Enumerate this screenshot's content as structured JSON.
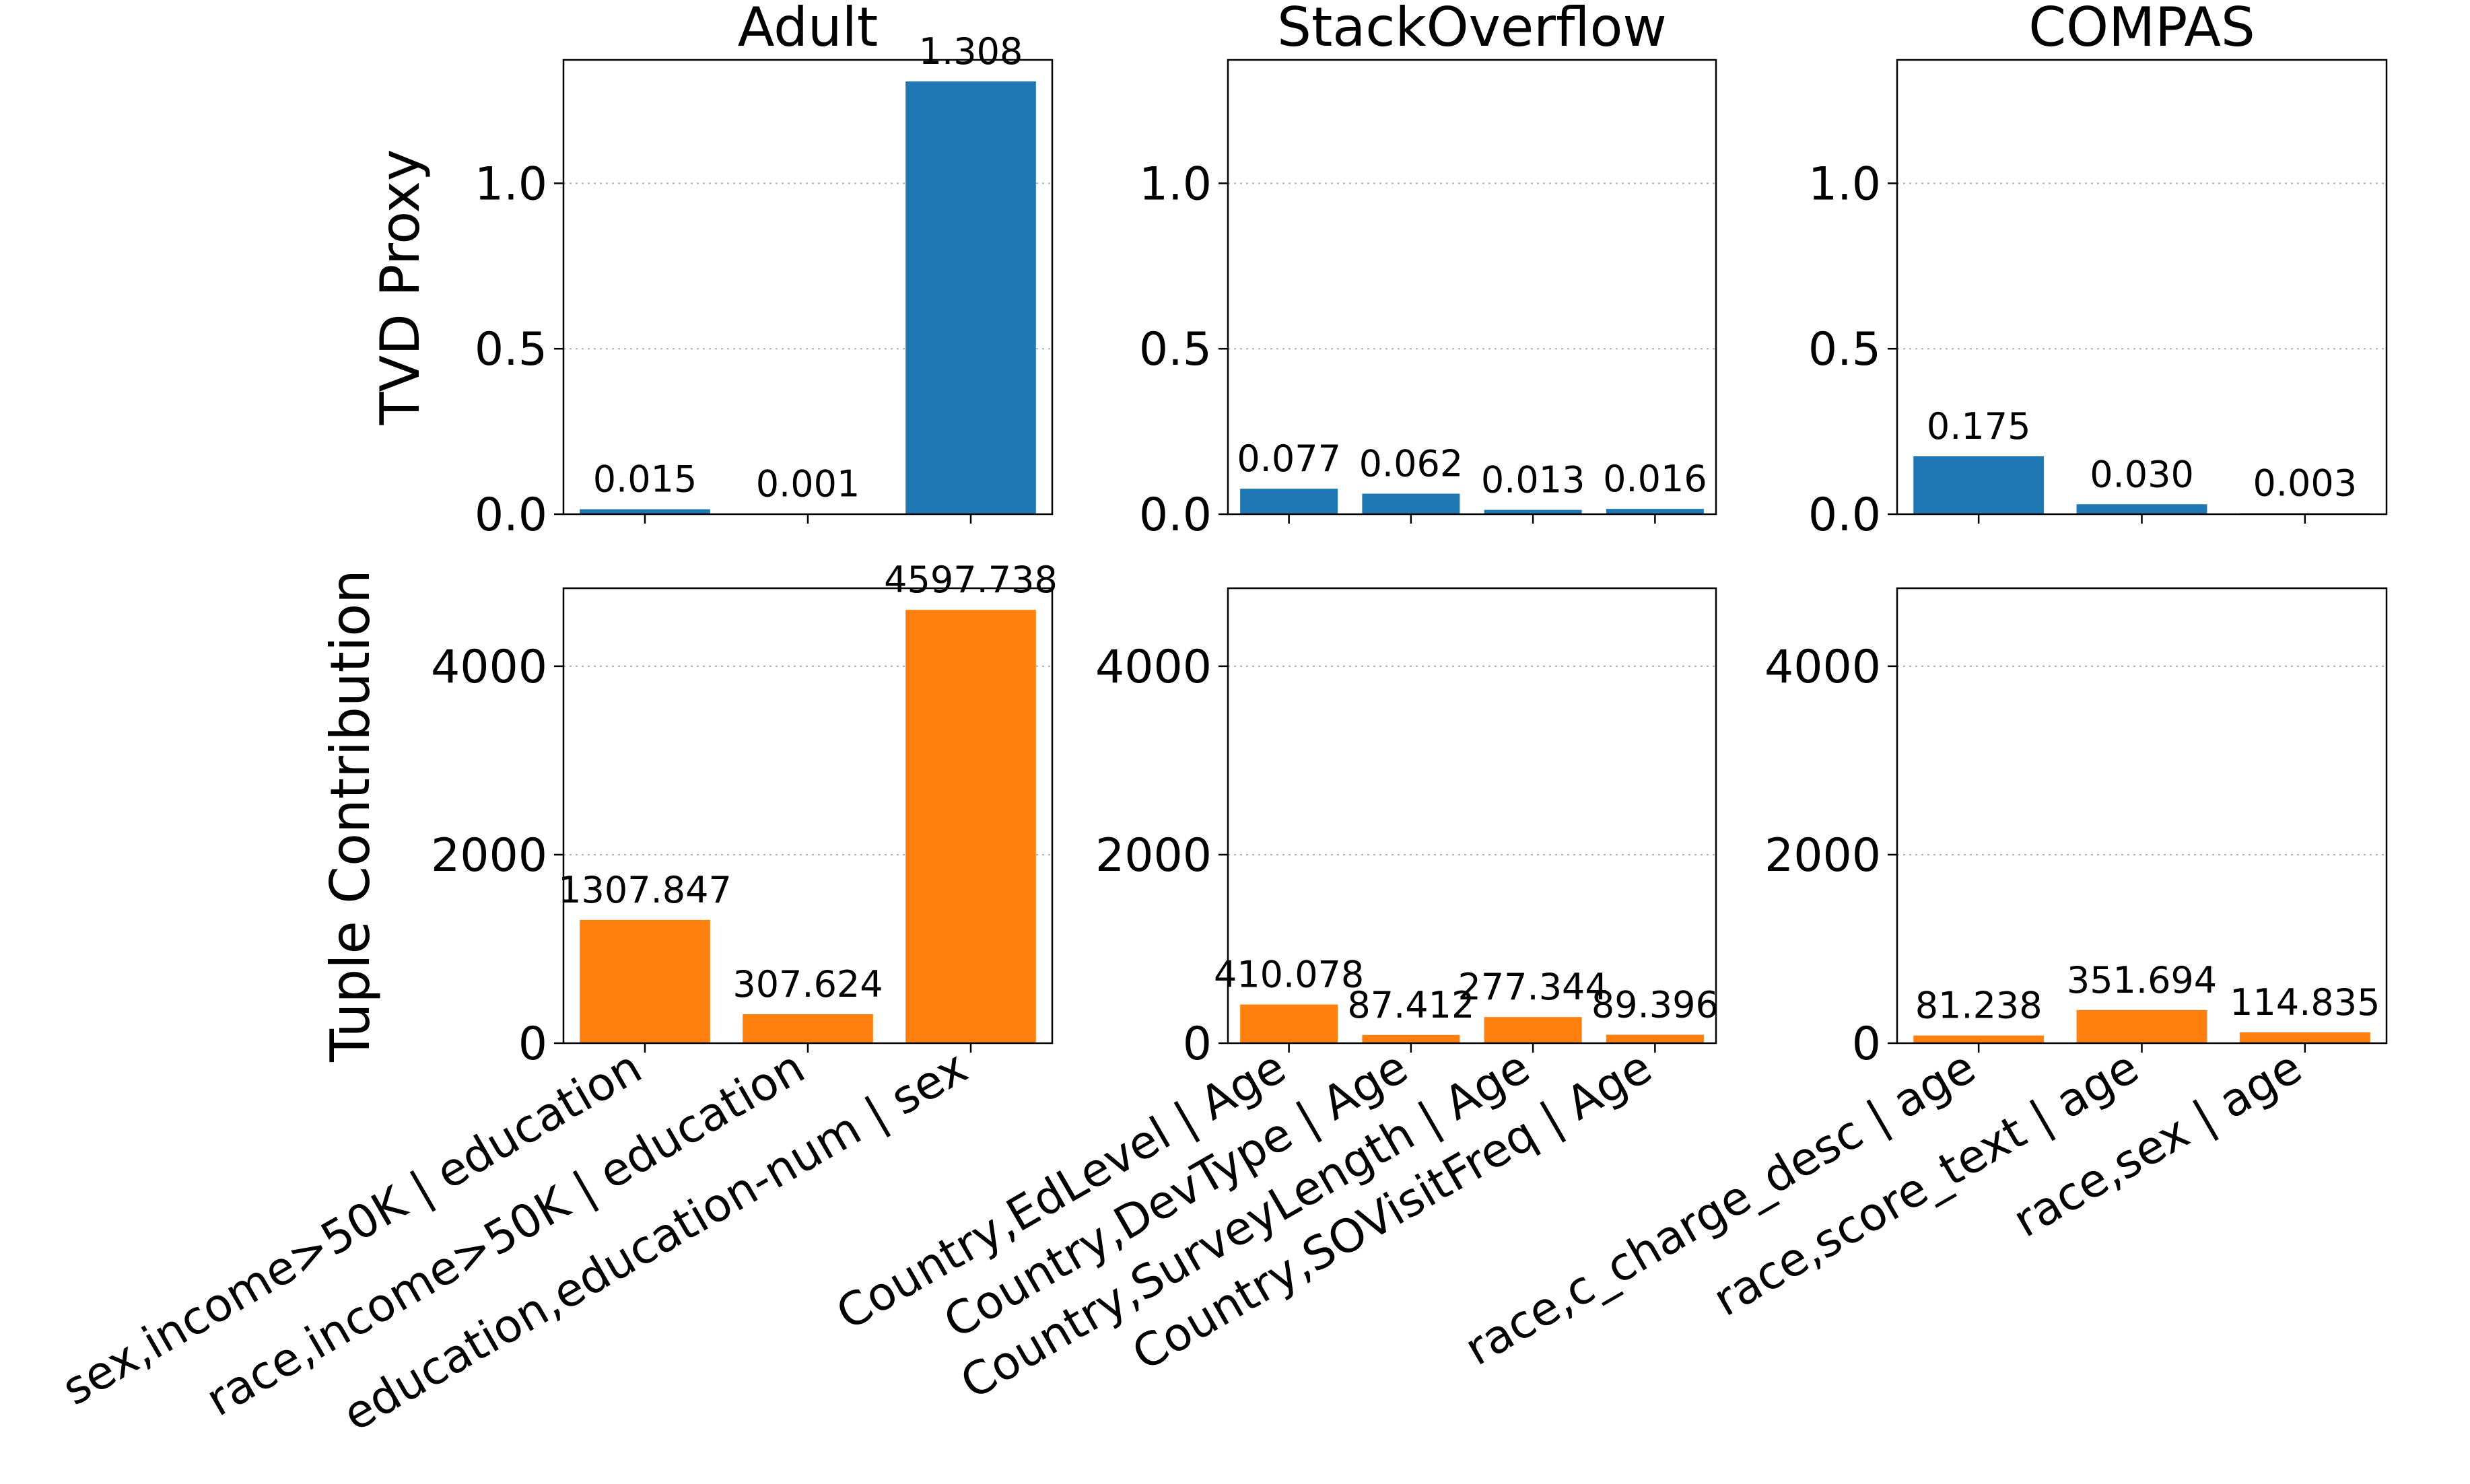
{
  "chart_data": [
    {
      "type": "bar",
      "title": "Adult",
      "ylabel": "TVD Proxy",
      "categories": [
        "sex,income>50K | education",
        "race,income>50K | education",
        "education,education-num | sex"
      ],
      "series": [
        {
          "values": [
            0.015,
            0.001,
            1.308
          ]
        }
      ],
      "value_labels": [
        "0.015",
        "0.001",
        "1.308"
      ],
      "ylim": [
        0,
        1.373
      ],
      "yticks": [
        "0.0",
        "0.5",
        "1.0"
      ],
      "color": "#1f77b4",
      "grid": "y-dotted"
    },
    {
      "type": "bar",
      "title": "StackOverflow",
      "categories": [
        "Country,EdLevel | Age",
        "Country,DevType | Age",
        "Country,SurveyLength | Age",
        "Country,SOVisitFreq | Age"
      ],
      "series": [
        {
          "values": [
            0.077,
            0.062,
            0.013,
            0.016
          ]
        }
      ],
      "value_labels": [
        "0.077",
        "0.062",
        "0.013",
        "0.016"
      ],
      "ylim": [
        0,
        1.373
      ],
      "yticks": [
        "0.0",
        "0.5",
        "1.0"
      ],
      "color": "#1f77b4",
      "grid": "y-dotted"
    },
    {
      "type": "bar",
      "title": "COMPAS",
      "categories": [
        "race,c_charge_desc | age",
        "race,score_text | age",
        "race,sex | age"
      ],
      "series": [
        {
          "values": [
            0.175,
            0.03,
            0.003
          ]
        }
      ],
      "value_labels": [
        "0.175",
        "0.030",
        "0.003"
      ],
      "ylim": [
        0,
        1.373
      ],
      "yticks": [
        "0.0",
        "0.5",
        "1.0"
      ],
      "color": "#1f77b4",
      "grid": "y-dotted"
    },
    {
      "type": "bar",
      "ylabel": "Tuple Contribution",
      "categories": [
        "sex,income>50K | education",
        "race,income>50K | education",
        "education,education-num | sex"
      ],
      "series": [
        {
          "values": [
            1307.847,
            307.624,
            4597.738
          ]
        }
      ],
      "value_labels": [
        "1307.847",
        "307.624",
        "4597.738"
      ],
      "ylim": [
        0,
        4827.6
      ],
      "yticks": [
        "0",
        "2000",
        "4000"
      ],
      "color": "#ff7f0e",
      "grid": "y-dotted"
    },
    {
      "type": "bar",
      "categories": [
        "Country,EdLevel | Age",
        "Country,DevType | Age",
        "Country,SurveyLength | Age",
        "Country,SOVisitFreq | Age"
      ],
      "series": [
        {
          "values": [
            410.078,
            87.412,
            277.344,
            89.396
          ]
        }
      ],
      "value_labels": [
        "410.078",
        "87.412",
        "277.344",
        "89.396"
      ],
      "ylim": [
        0,
        4827.6
      ],
      "yticks": [
        "0",
        "2000",
        "4000"
      ],
      "color": "#ff7f0e",
      "grid": "y-dotted"
    },
    {
      "type": "bar",
      "categories": [
        "race,c_charge_desc | age",
        "race,score_text | age",
        "race,sex | age"
      ],
      "series": [
        {
          "values": [
            81.238,
            351.694,
            114.835
          ]
        }
      ],
      "value_labels": [
        "81.238",
        "351.694",
        "114.835"
      ],
      "ylim": [
        0,
        4827.6
      ],
      "yticks": [
        "0",
        "2000",
        "4000"
      ],
      "color": "#ff7f0e",
      "grid": "y-dotted"
    }
  ]
}
